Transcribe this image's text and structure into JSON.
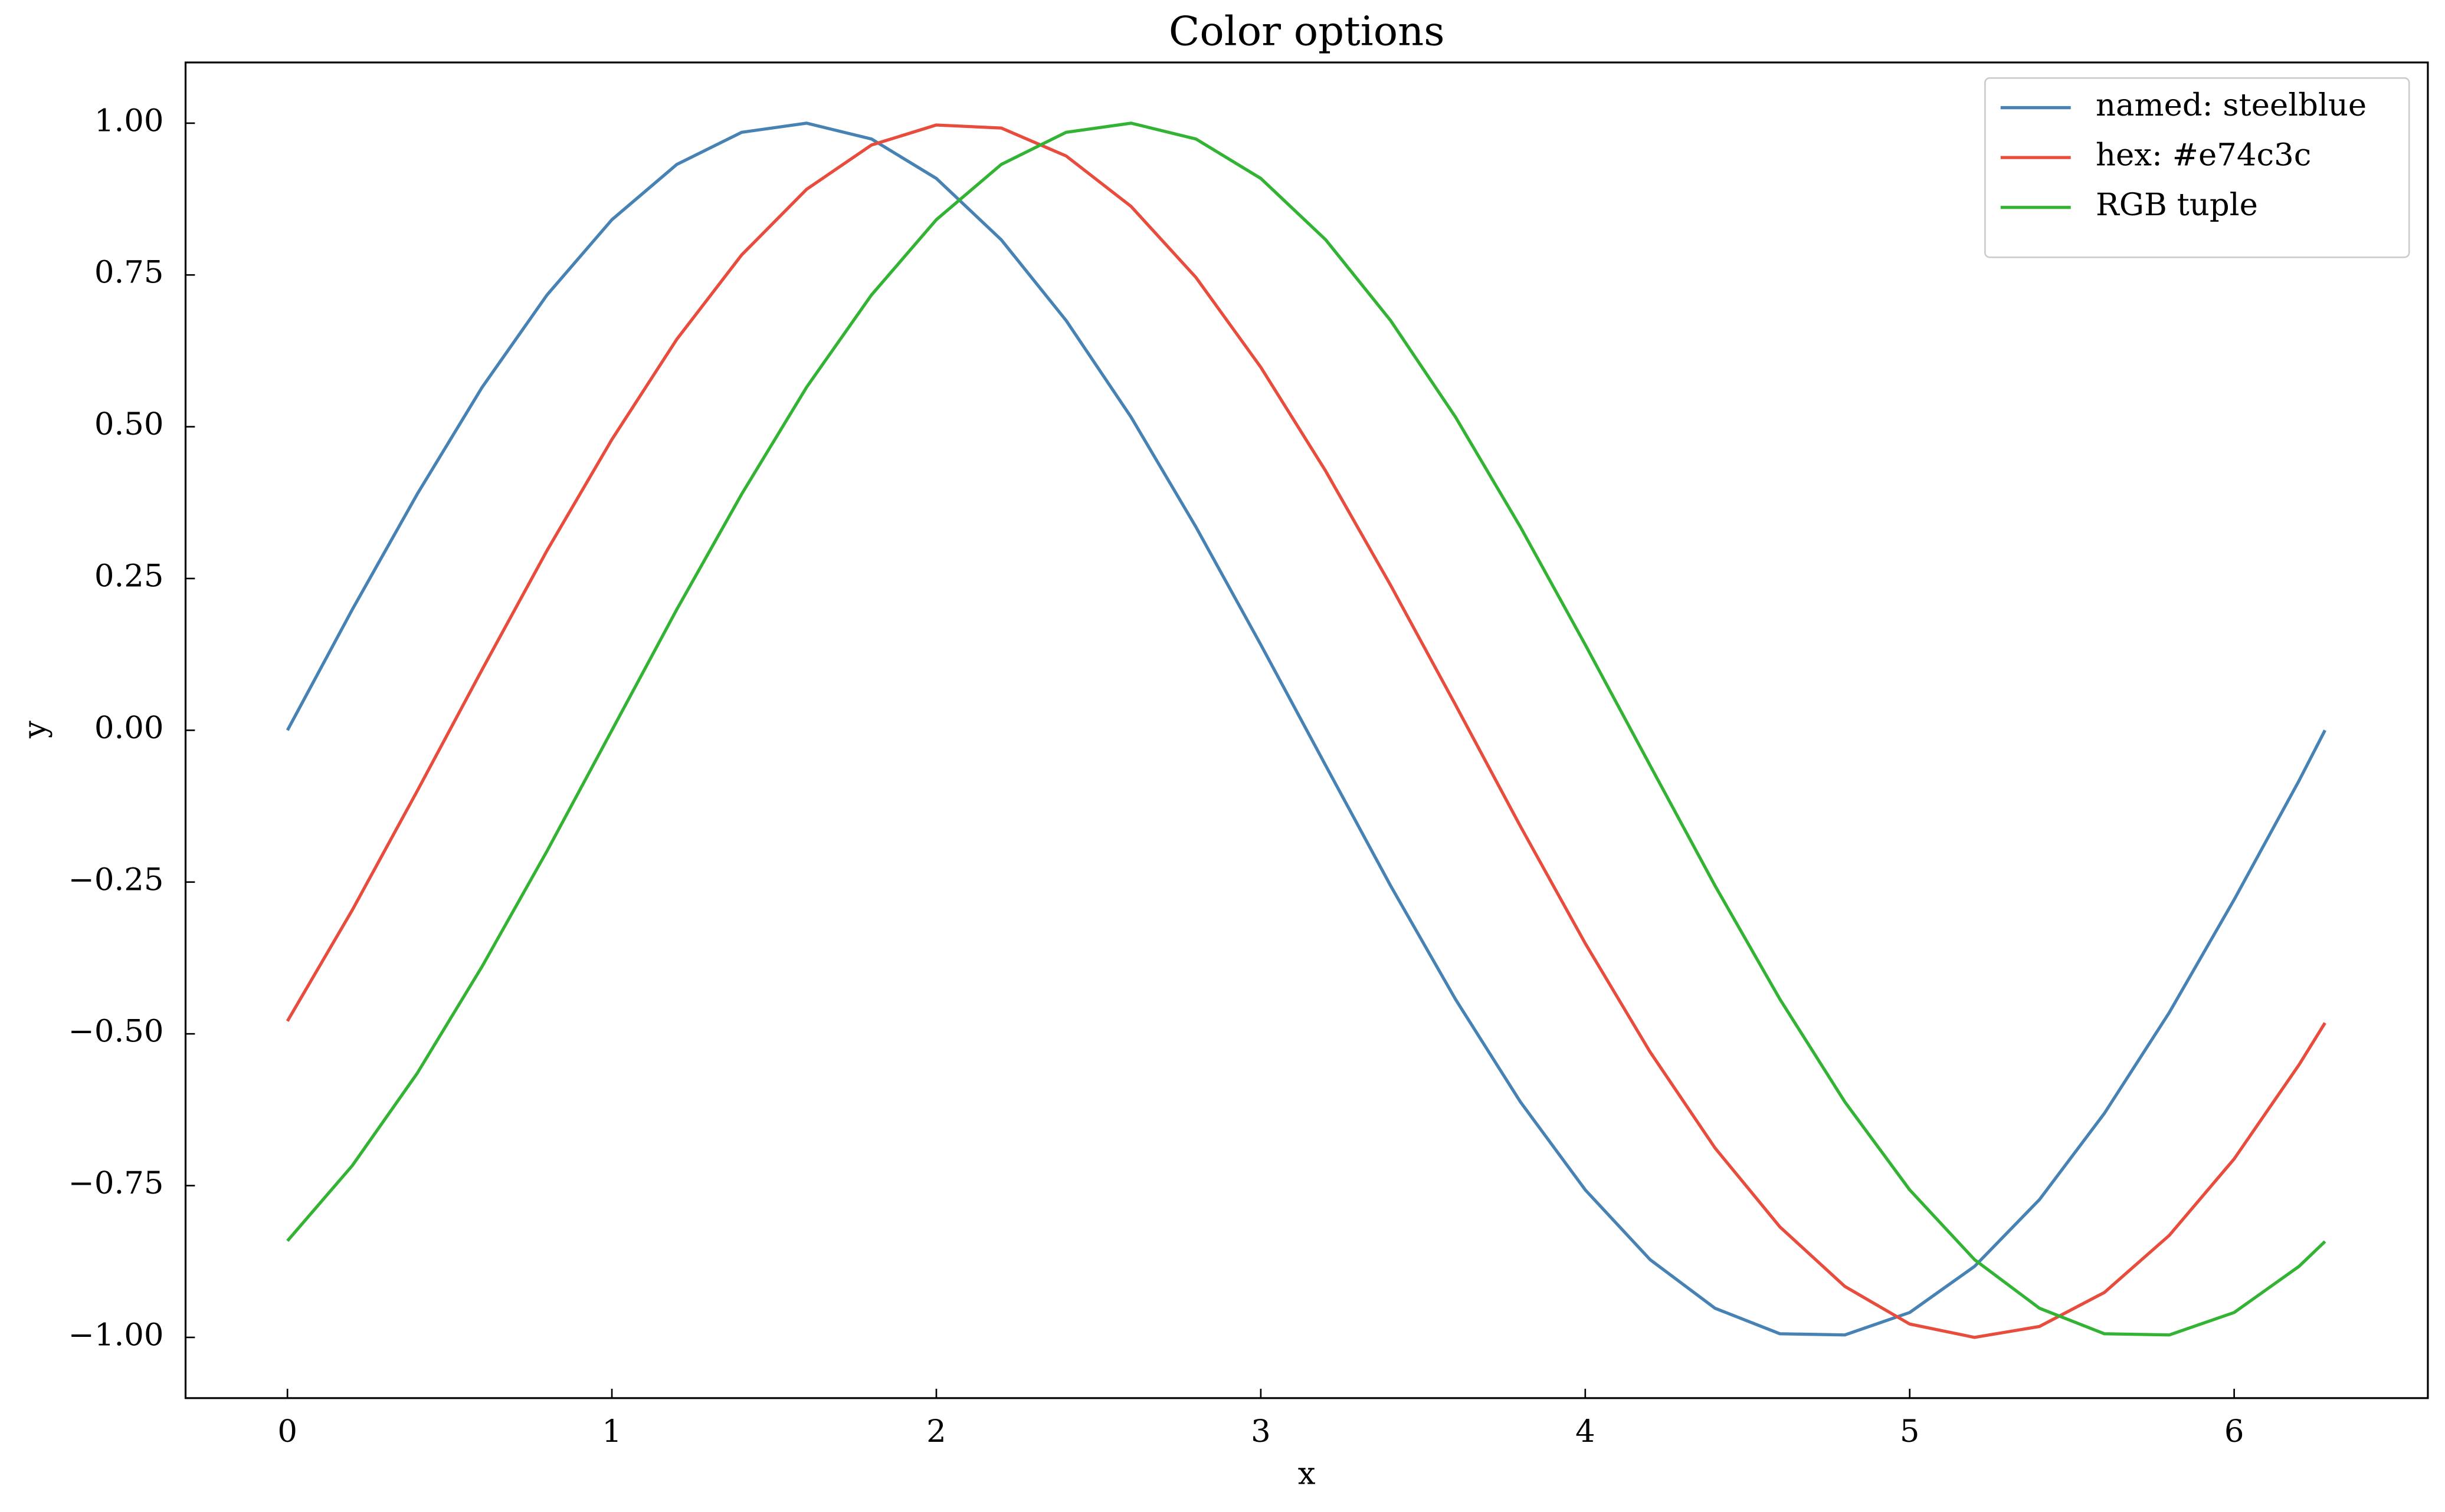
{
  "chart_data": {
    "type": "line",
    "title": "Color options",
    "x_label": "x",
    "y_label": "y",
    "x": [
      0,
      0.2,
      0.4,
      0.6,
      0.8,
      1.0,
      1.2,
      1.4,
      1.6,
      1.8,
      2.0,
      2.2,
      2.4,
      2.6,
      2.8,
      3.0,
      3.2,
      3.4,
      3.6,
      3.8,
      4.0,
      4.2,
      4.4,
      4.6,
      4.8,
      5.0,
      5.2,
      5.4,
      5.6,
      5.8,
      6.0,
      6.2,
      6.28
    ],
    "series": [
      {
        "name": "named: steelblue",
        "color": "#4682b4",
        "values": [
          0,
          0.199,
          0.389,
          0.565,
          0.717,
          0.841,
          0.932,
          0.985,
          1.0,
          0.974,
          0.909,
          0.808,
          0.675,
          0.516,
          0.335,
          0.141,
          -0.058,
          -0.256,
          -0.443,
          -0.612,
          -0.757,
          -0.872,
          -0.952,
          -0.994,
          -0.996,
          -0.959,
          -0.883,
          -0.773,
          -0.631,
          -0.465,
          -0.279,
          -0.083,
          0
        ]
      },
      {
        "name": "hex: #e74c3c",
        "color": "#e74c3c",
        "values": [
          -0.479,
          -0.296,
          -0.1,
          0.1,
          0.296,
          0.479,
          0.644,
          0.783,
          0.891,
          0.964,
          0.997,
          0.992,
          0.946,
          0.863,
          0.746,
          0.598,
          0.427,
          0.239,
          0.042,
          -0.158,
          -0.351,
          -0.53,
          -0.688,
          -0.818,
          -0.916,
          -0.978,
          -1.0,
          -0.982,
          -0.926,
          -0.832,
          -0.706,
          -0.551,
          -0.482
        ]
      },
      {
        "name": "RGB tuple",
        "color": "#33b333",
        "values": [
          -0.841,
          -0.717,
          -0.565,
          -0.389,
          -0.199,
          0,
          0.199,
          0.389,
          0.565,
          0.717,
          0.841,
          0.932,
          0.985,
          1.0,
          0.974,
          0.909,
          0.808,
          0.675,
          0.516,
          0.335,
          0.141,
          -0.058,
          -0.256,
          -0.443,
          -0.612,
          -0.757,
          -0.872,
          -0.952,
          -0.994,
          -0.996,
          -0.959,
          -0.883,
          -0.842
        ]
      }
    ],
    "xlim": [
      -0.314,
      6.597
    ],
    "ylim": [
      -1.1,
      1.1
    ],
    "xticks": [
      0,
      1,
      2,
      3,
      4,
      5,
      6
    ],
    "yticks": [
      {
        "value": -1.0,
        "label": "−1.00"
      },
      {
        "value": -0.75,
        "label": "−0.75"
      },
      {
        "value": -0.5,
        "label": "−0.50"
      },
      {
        "value": -0.25,
        "label": "−0.25"
      },
      {
        "value": 0,
        "label": "0.00"
      },
      {
        "value": 0.25,
        "label": "0.25"
      },
      {
        "value": 0.5,
        "label": "0.50"
      },
      {
        "value": 0.75,
        "label": "0.75"
      },
      {
        "value": 1.0,
        "label": "1.00"
      }
    ],
    "legend": "upper right",
    "grid": false
  }
}
